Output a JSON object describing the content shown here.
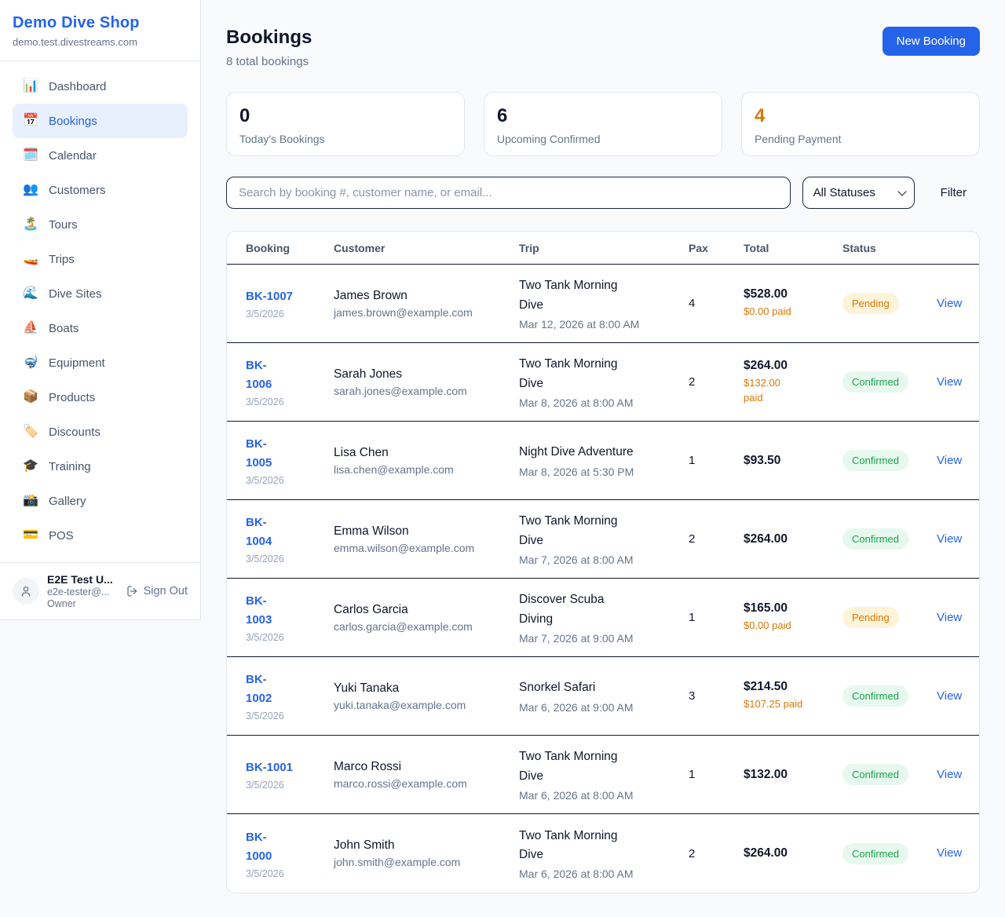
{
  "colors": {
    "accent": "#2563eb",
    "pending_text": "#d97706",
    "pending_bg": "#fdf3d8",
    "confirmed_text": "#16a34a",
    "confirmed_bg": "#e7f8ee",
    "page_bg": "#f8fafc",
    "row_divider": "#0f172a"
  },
  "sidebar": {
    "brand": "Demo Dive Shop",
    "domain": "demo.test.divestreams.com",
    "items": [
      {
        "key": "dashboard",
        "label": "Dashboard",
        "icon": "📊",
        "icon_name": "bar-chart-icon",
        "active": false
      },
      {
        "key": "bookings",
        "label": "Bookings",
        "icon": "📅",
        "icon_name": "calendar-icon",
        "active": true
      },
      {
        "key": "calendar",
        "label": "Calendar",
        "icon": "🗓️",
        "icon_name": "spiral-calendar-icon",
        "active": false
      },
      {
        "key": "customers",
        "label": "Customers",
        "icon": "👥",
        "icon_name": "people-icon",
        "active": false
      },
      {
        "key": "tours",
        "label": "Tours",
        "icon": "🏝️",
        "icon_name": "island-icon",
        "active": false
      },
      {
        "key": "trips",
        "label": "Trips",
        "icon": "🚤",
        "icon_name": "speedboat-icon",
        "active": false
      },
      {
        "key": "dive-sites",
        "label": "Dive Sites",
        "icon": "🌊",
        "icon_name": "wave-icon",
        "active": false
      },
      {
        "key": "boats",
        "label": "Boats",
        "icon": "⛵",
        "icon_name": "sailboat-icon",
        "active": false
      },
      {
        "key": "equipment",
        "label": "Equipment",
        "icon": "🤿",
        "icon_name": "diving-mask-icon",
        "active": false
      },
      {
        "key": "products",
        "label": "Products",
        "icon": "📦",
        "icon_name": "package-icon",
        "active": false
      },
      {
        "key": "discounts",
        "label": "Discounts",
        "icon": "🏷️",
        "icon_name": "label-tag-icon",
        "active": false
      },
      {
        "key": "training",
        "label": "Training",
        "icon": "🎓",
        "icon_name": "graduation-cap-icon",
        "active": false
      },
      {
        "key": "gallery",
        "label": "Gallery",
        "icon": "📸",
        "icon_name": "camera-flash-icon",
        "active": false
      },
      {
        "key": "pos",
        "label": "POS",
        "icon": "💳",
        "icon_name": "credit-card-icon",
        "active": false
      }
    ],
    "user": {
      "name": "E2E Test U...",
      "email": "e2e-tester@...",
      "role": "Owner",
      "sign_out_label": "Sign Out"
    }
  },
  "header": {
    "title": "Bookings",
    "subtitle": "8 total bookings",
    "new_booking_label": "New Booking"
  },
  "stats": {
    "cards": [
      {
        "value": "0",
        "label": "Today's Bookings",
        "accent": "dark"
      },
      {
        "value": "6",
        "label": "Upcoming Confirmed",
        "accent": "dark"
      },
      {
        "value": "4",
        "label": "Pending Payment",
        "accent": "orange"
      }
    ]
  },
  "controls": {
    "search_placeholder": "Search by booking #, customer name, or email...",
    "status_filter_selected": "All Statuses",
    "filter_label": "Filter"
  },
  "table": {
    "columns": [
      "Booking",
      "Customer",
      "Trip",
      "Pax",
      "Total",
      "Status"
    ],
    "view_label": "View",
    "rows": [
      {
        "id_lines": [
          "BK-1007"
        ],
        "date": "3/5/2026",
        "customer_name": "James Brown",
        "customer_email": "james.brown@example.com",
        "trip_lines": [
          "Two Tank Morning",
          "Dive"
        ],
        "trip_datetime": "Mar 12, 2026 at 8:00 AM",
        "pax": "4",
        "total": "$528.00",
        "paid_lines": [
          "$0.00 paid"
        ],
        "status": "Pending",
        "status_type": "pending"
      },
      {
        "id_lines": [
          "BK-",
          "1006"
        ],
        "date": "3/5/2026",
        "customer_name": "Sarah Jones",
        "customer_email": "sarah.jones@example.com",
        "trip_lines": [
          "Two Tank Morning",
          "Dive"
        ],
        "trip_datetime": "Mar 8, 2026 at 8:00 AM",
        "pax": "2",
        "total": "$264.00",
        "paid_lines": [
          "$132.00",
          "paid"
        ],
        "status": "Confirmed",
        "status_type": "confirmed"
      },
      {
        "id_lines": [
          "BK-",
          "1005"
        ],
        "date": "3/5/2026",
        "customer_name": "Lisa Chen",
        "customer_email": "lisa.chen@example.com",
        "trip_lines": [
          "Night Dive Adventure"
        ],
        "trip_datetime": "Mar 8, 2026 at 5:30 PM",
        "pax": "1",
        "total": "$93.50",
        "paid_lines": [],
        "status": "Confirmed",
        "status_type": "confirmed"
      },
      {
        "id_lines": [
          "BK-",
          "1004"
        ],
        "date": "3/5/2026",
        "customer_name": "Emma Wilson",
        "customer_email": "emma.wilson@example.com",
        "trip_lines": [
          "Two Tank Morning",
          "Dive"
        ],
        "trip_datetime": "Mar 7, 2026 at 8:00 AM",
        "pax": "2",
        "total": "$264.00",
        "paid_lines": [],
        "status": "Confirmed",
        "status_type": "confirmed"
      },
      {
        "id_lines": [
          "BK-",
          "1003"
        ],
        "date": "3/5/2026",
        "customer_name": "Carlos Garcia",
        "customer_email": "carlos.garcia@example.com",
        "trip_lines": [
          "Discover Scuba",
          "Diving"
        ],
        "trip_datetime": "Mar 7, 2026 at 9:00 AM",
        "pax": "1",
        "total": "$165.00",
        "paid_lines": [
          "$0.00 paid"
        ],
        "status": "Pending",
        "status_type": "pending"
      },
      {
        "id_lines": [
          "BK-",
          "1002"
        ],
        "date": "3/5/2026",
        "customer_name": "Yuki Tanaka",
        "customer_email": "yuki.tanaka@example.com",
        "trip_lines": [
          "Snorkel Safari"
        ],
        "trip_datetime": "Mar 6, 2026 at 9:00 AM",
        "pax": "3",
        "total": "$214.50",
        "paid_lines": [
          "$107.25 paid"
        ],
        "status": "Confirmed",
        "status_type": "confirmed"
      },
      {
        "id_lines": [
          "BK-1001"
        ],
        "date": "3/5/2026",
        "customer_name": "Marco Rossi",
        "customer_email": "marco.rossi@example.com",
        "trip_lines": [
          "Two Tank Morning",
          "Dive"
        ],
        "trip_datetime": "Mar 6, 2026 at 8:00 AM",
        "pax": "1",
        "total": "$132.00",
        "paid_lines": [],
        "status": "Confirmed",
        "status_type": "confirmed"
      },
      {
        "id_lines": [
          "BK-",
          "1000"
        ],
        "date": "3/5/2026",
        "customer_name": "John Smith",
        "customer_email": "john.smith@example.com",
        "trip_lines": [
          "Two Tank Morning",
          "Dive"
        ],
        "trip_datetime": "Mar 6, 2026 at 8:00 AM",
        "pax": "2",
        "total": "$264.00",
        "paid_lines": [],
        "status": "Confirmed",
        "status_type": "confirmed"
      }
    ]
  }
}
